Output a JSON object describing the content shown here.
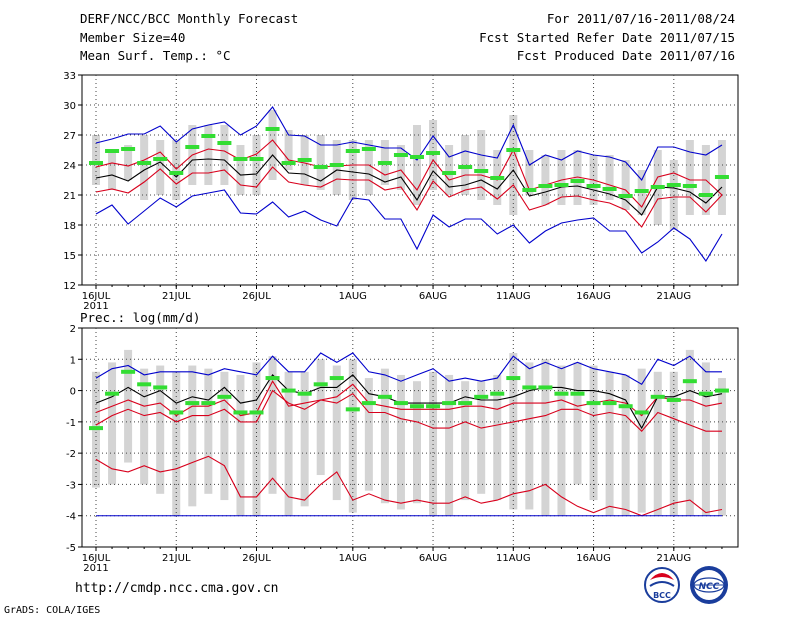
{
  "header": {
    "title": "DERF/NCC/BCC Monthly Forecast",
    "member_size": "Member Size=40",
    "variable": "Mean Surf. Temp.: °C",
    "period": "For 2011/07/16-2011/08/24",
    "started": "Fcst Started Refer Date 2011/07/15",
    "produced": "Fcst Produced Date 2011/07/16"
  },
  "footer": {
    "url": "http://cmdp.ncc.cma.gov.cn",
    "grads": "GrADS: COLA/IGES",
    "logo_bcc": "BCC",
    "logo_ncc": "NCC"
  },
  "colors": {
    "box": "#d4d4d4",
    "median": "#000000",
    "inner": "#d8001c",
    "outer": "#0000cc",
    "mean": "#33dd33",
    "grid": "#444444"
  },
  "chart_data": [
    {
      "type": "line",
      "title": "Mean Surf. Temp.: °C",
      "ylim": [
        12,
        33
      ],
      "yticks": [
        12,
        15,
        18,
        21,
        24,
        27,
        30,
        33
      ],
      "x": [
        1,
        2,
        3,
        4,
        5,
        6,
        7,
        8,
        9,
        10,
        11,
        12,
        13,
        14,
        15,
        16,
        17,
        18,
        19,
        20,
        21,
        22,
        23,
        24,
        25,
        26,
        27,
        28,
        29,
        30,
        31,
        32,
        33,
        34,
        35,
        36,
        37,
        38,
        39,
        40
      ],
      "xticks": [
        {
          "day": 1,
          "label": "16JUL",
          "sub": "2011"
        },
        {
          "day": 6,
          "label": "21JUL"
        },
        {
          "day": 11,
          "label": "26JUL"
        },
        {
          "day": 17,
          "label": "1AUG"
        },
        {
          "day": 22,
          "label": "6AUG"
        },
        {
          "day": 27,
          "label": "11AUG"
        },
        {
          "day": 32,
          "label": "16AUG"
        },
        {
          "day": 37,
          "label": "21AUG"
        }
      ],
      "boxes": {
        "low": [
          22.0,
          21.5,
          22.5,
          20.5,
          21.0,
          20.5,
          22.0,
          22.0,
          22.0,
          21.0,
          21.0,
          22.5,
          23.5,
          22.0,
          21.5,
          21.0,
          20.5,
          21.0,
          22.0,
          21.5,
          20.0,
          21.5,
          21.0,
          21.0,
          20.5,
          20.0,
          19.0,
          21.0,
          20.0,
          20.0,
          20.0,
          20.0,
          20.5,
          19.5,
          19.0,
          18.0,
          17.5,
          19.0,
          19.0,
          19.0
        ],
        "high": [
          27.0,
          25.5,
          26.0,
          27.0,
          26.5,
          26.5,
          28.0,
          28.0,
          28.0,
          26.0,
          27.0,
          29.5,
          27.5,
          27.0,
          27.0,
          26.5,
          26.5,
          26.5,
          26.5,
          26.0,
          28.0,
          28.5,
          26.0,
          27.0,
          27.5,
          25.5,
          29.0,
          25.5,
          25.0,
          25.5,
          25.5,
          25.0,
          25.0,
          24.5,
          23.5,
          25.5,
          24.5,
          26.5,
          26.0,
          26.5
        ]
      },
      "series": [
        {
          "name": "max",
          "color": "outer",
          "values": [
            26.2,
            26.6,
            27.1,
            27.1,
            27.9,
            26.3,
            27.6,
            28.0,
            28.3,
            27.0,
            27.9,
            29.8,
            27.0,
            26.9,
            26.0,
            26.0,
            26.3,
            26.0,
            25.7,
            25.7,
            24.5,
            26.9,
            24.8,
            25.4,
            25.0,
            24.7,
            28.0,
            24.0,
            25.0,
            24.5,
            25.4,
            25.0,
            24.8,
            24.3,
            22.5,
            25.8,
            25.8,
            25.3,
            25.0,
            26.0
          ]
        },
        {
          "name": "upper",
          "color": "inner",
          "values": [
            23.8,
            24.2,
            23.9,
            24.5,
            25.3,
            23.6,
            25.0,
            25.6,
            25.4,
            24.5,
            25.1,
            26.5,
            24.5,
            24.2,
            23.8,
            23.9,
            24.0,
            24.0,
            23.0,
            23.5,
            21.5,
            24.5,
            22.5,
            23.0,
            23.0,
            22.5,
            25.5,
            21.5,
            22.0,
            22.5,
            22.8,
            22.5,
            22.0,
            21.5,
            19.8,
            22.8,
            23.2,
            22.5,
            22.5,
            21.0
          ]
        },
        {
          "name": "median",
          "color": "median",
          "values": [
            22.7,
            23.0,
            22.4,
            23.5,
            24.3,
            22.8,
            24.5,
            24.6,
            24.5,
            23.0,
            23.1,
            25.0,
            23.2,
            23.1,
            22.4,
            23.5,
            23.3,
            23.1,
            22.3,
            22.8,
            20.5,
            23.4,
            21.8,
            22.0,
            22.5,
            21.6,
            23.5,
            20.9,
            21.3,
            21.8,
            21.9,
            21.5,
            21.1,
            20.5,
            19.0,
            21.8,
            21.7,
            21.3,
            20.2,
            21.8
          ]
        },
        {
          "name": "lower",
          "color": "inner",
          "values": [
            21.3,
            21.6,
            21.2,
            22.3,
            23.6,
            22.1,
            23.2,
            23.2,
            23.5,
            22.0,
            21.8,
            23.8,
            22.3,
            22.0,
            21.8,
            22.6,
            22.5,
            22.5,
            21.5,
            21.8,
            19.5,
            22.4,
            20.8,
            21.5,
            21.8,
            20.6,
            22.0,
            19.5,
            20.0,
            20.8,
            20.9,
            20.5,
            20.2,
            19.5,
            17.8,
            20.6,
            20.8,
            20.8,
            19.3,
            21.0
          ]
        },
        {
          "name": "min",
          "color": "outer",
          "values": [
            19.1,
            20.0,
            18.1,
            19.4,
            20.7,
            19.8,
            20.9,
            21.2,
            21.5,
            19.2,
            19.1,
            20.3,
            18.8,
            19.4,
            18.5,
            17.9,
            20.7,
            20.5,
            18.6,
            18.6,
            15.6,
            19.0,
            17.8,
            18.6,
            18.6,
            17.1,
            18.0,
            16.2,
            17.4,
            18.2,
            18.5,
            18.7,
            17.4,
            17.4,
            15.2,
            16.3,
            17.7,
            16.6,
            14.4,
            17.1
          ]
        }
      ],
      "mean_marks": [
        24.2,
        25.4,
        25.6,
        24.2,
        24.6,
        23.2,
        25.8,
        26.9,
        26.2,
        24.6,
        24.6,
        27.6,
        24.2,
        24.5,
        23.8,
        24.0,
        25.4,
        25.6,
        24.2,
        25.0,
        24.8,
        25.2,
        23.2,
        23.8,
        23.4,
        22.7,
        25.5,
        21.5,
        21.9,
        22.0,
        22.4,
        21.9,
        21.6,
        20.9,
        21.4,
        21.8,
        22.0,
        21.9,
        21.0,
        22.8
      ]
    },
    {
      "type": "line",
      "title": "Prec.: log(mm/d)",
      "ylim": [
        -5,
        2
      ],
      "yticks": [
        -5,
        -4,
        -3,
        -2,
        -1,
        0,
        1,
        2
      ],
      "x": [
        1,
        2,
        3,
        4,
        5,
        6,
        7,
        8,
        9,
        10,
        11,
        12,
        13,
        14,
        15,
        16,
        17,
        18,
        19,
        20,
        21,
        22,
        23,
        24,
        25,
        26,
        27,
        28,
        29,
        30,
        31,
        32,
        33,
        34,
        35,
        36,
        37,
        38,
        39,
        40
      ],
      "xticks": [
        {
          "day": 1,
          "label": "16JUL",
          "sub": "2011"
        },
        {
          "day": 6,
          "label": "21JUL"
        },
        {
          "day": 11,
          "label": "26JUL"
        },
        {
          "day": 17,
          "label": "1AUG"
        },
        {
          "day": 22,
          "label": "6AUG"
        },
        {
          "day": 27,
          "label": "11AUG"
        },
        {
          "day": 32,
          "label": "16AUG"
        },
        {
          "day": 37,
          "label": "21AUG"
        }
      ],
      "boxes": {
        "low": [
          -3.1,
          -3.0,
          -2.3,
          -3.0,
          -3.3,
          -4.0,
          -3.7,
          -3.3,
          -3.5,
          -4.0,
          -4.0,
          -3.3,
          -4.0,
          -3.7,
          -2.7,
          -3.5,
          -3.9,
          -3.2,
          -3.6,
          -3.8,
          -3.6,
          -4.0,
          -4.0,
          -3.5,
          -3.3,
          -3.5,
          -3.8,
          -3.8,
          -4.0,
          -4.0,
          -3.0,
          -3.5,
          -4.0,
          -4.0,
          -3.9,
          -4.0,
          -4.0,
          -4.0,
          -4.0,
          -4.0
        ],
        "high": [
          0.6,
          0.9,
          1.3,
          0.7,
          0.8,
          0.6,
          0.8,
          0.7,
          0.6,
          0.5,
          0.9,
          1.1,
          0.6,
          0.6,
          1.0,
          0.8,
          1.0,
          0.4,
          0.7,
          0.5,
          0.3,
          0.6,
          0.5,
          0.3,
          0.3,
          0.5,
          1.2,
          0.9,
          1.0,
          0.8,
          0.9,
          0.8,
          0.6,
          0.5,
          0.7,
          0.6,
          0.6,
          1.3,
          0.9,
          0.4
        ]
      },
      "series": [
        {
          "name": "max",
          "color": "outer",
          "values": [
            0.4,
            0.7,
            0.8,
            0.5,
            0.6,
            0.6,
            0.6,
            0.5,
            0.7,
            0.6,
            0.5,
            1.1,
            0.6,
            0.6,
            1.2,
            0.9,
            1.2,
            0.6,
            0.5,
            0.3,
            0.5,
            0.7,
            0.3,
            0.4,
            0.3,
            0.4,
            1.1,
            0.7,
            0.9,
            0.7,
            0.9,
            0.7,
            0.6,
            0.5,
            0.2,
            1.0,
            0.8,
            1.1,
            0.6,
            0.6
          ]
        },
        {
          "name": "upper",
          "color": "inner",
          "values": [
            -0.7,
            -0.5,
            -0.3,
            -0.5,
            -0.4,
            -0.8,
            -0.5,
            -0.5,
            -0.3,
            -0.8,
            -0.7,
            0.3,
            -0.5,
            -0.4,
            -0.3,
            -0.2,
            0.2,
            -0.4,
            -0.5,
            -0.6,
            -0.6,
            -0.6,
            -0.6,
            -0.5,
            -0.5,
            -0.6,
            -0.4,
            -0.4,
            -0.4,
            -0.3,
            -0.5,
            -0.4,
            -0.3,
            -0.4,
            -0.8,
            -0.2,
            -0.3,
            -0.3,
            -0.5,
            -0.4
          ]
        },
        {
          "name": "median",
          "color": "median",
          "values": [
            -0.4,
            -0.2,
            0.1,
            -0.2,
            0.0,
            -0.4,
            -0.2,
            -0.3,
            0.1,
            -0.4,
            -0.3,
            0.5,
            0.0,
            -0.1,
            0.1,
            0.1,
            0.5,
            -0.1,
            -0.2,
            -0.4,
            -0.4,
            -0.4,
            -0.4,
            -0.2,
            -0.3,
            -0.3,
            -0.2,
            0.0,
            0.1,
            0.1,
            0.0,
            0.0,
            -0.1,
            -0.3,
            -1.2,
            -0.2,
            -0.2,
            0.0,
            -0.2,
            -0.1
          ]
        },
        {
          "name": "lower",
          "color": "inner",
          "values": [
            -1.1,
            -0.8,
            -0.6,
            -0.8,
            -0.7,
            -1.0,
            -0.8,
            -0.8,
            -0.6,
            -1.0,
            -1.0,
            0.0,
            -0.4,
            -0.6,
            -0.3,
            -0.4,
            -0.1,
            -0.7,
            -0.7,
            -0.9,
            -1.0,
            -1.2,
            -1.2,
            -1.0,
            -1.2,
            -1.1,
            -1.0,
            -0.9,
            -0.8,
            -0.6,
            -0.6,
            -0.8,
            -0.7,
            -0.8,
            -1.3,
            -0.7,
            -0.9,
            -1.1,
            -1.3,
            -1.3
          ]
        },
        {
          "name": "min",
          "color": "inner",
          "values": [
            -2.2,
            -2.5,
            -2.6,
            -2.4,
            -2.6,
            -2.5,
            -2.3,
            -2.1,
            -2.4,
            -3.4,
            -3.4,
            -2.8,
            -3.4,
            -3.5,
            -3.0,
            -2.6,
            -3.5,
            -3.3,
            -3.5,
            -3.6,
            -3.5,
            -3.6,
            -3.6,
            -3.4,
            -3.6,
            -3.5,
            -3.3,
            -3.2,
            -3.0,
            -3.4,
            -3.7,
            -3.9,
            -3.7,
            -3.8,
            -4.0,
            -3.8,
            -3.6,
            -3.5,
            -3.9,
            -3.8
          ]
        },
        {
          "name": "floor",
          "color": "outer",
          "values": [
            -4.0,
            -4.0,
            -4.0,
            -4.0,
            -4.0,
            -4.0,
            -4.0,
            -4.0,
            -4.0,
            -4.0,
            -4.0,
            -4.0,
            -4.0,
            -4.0,
            -4.0,
            -4.0,
            -4.0,
            -4.0,
            -4.0,
            -4.0,
            -4.0,
            -4.0,
            -4.0,
            -4.0,
            -4.0,
            -4.0,
            -4.0,
            -4.0,
            -4.0,
            -4.0,
            -4.0,
            -4.0,
            -4.0,
            -4.0,
            -4.0,
            -4.0,
            -4.0,
            -4.0,
            -4.0,
            -4.0
          ]
        }
      ],
      "mean_marks": [
        -1.2,
        -0.1,
        0.6,
        0.2,
        0.1,
        -0.7,
        -0.4,
        -0.4,
        -0.2,
        -0.7,
        -0.7,
        0.4,
        0.0,
        -0.1,
        0.2,
        0.4,
        -0.6,
        -0.4,
        -0.2,
        -0.4,
        -0.5,
        -0.5,
        -0.4,
        -0.4,
        -0.2,
        -0.1,
        0.4,
        0.1,
        0.1,
        -0.1,
        -0.1,
        -0.4,
        -0.4,
        -0.5,
        -0.7,
        -0.2,
        -0.3,
        0.3,
        -0.1,
        0.0
      ]
    }
  ]
}
